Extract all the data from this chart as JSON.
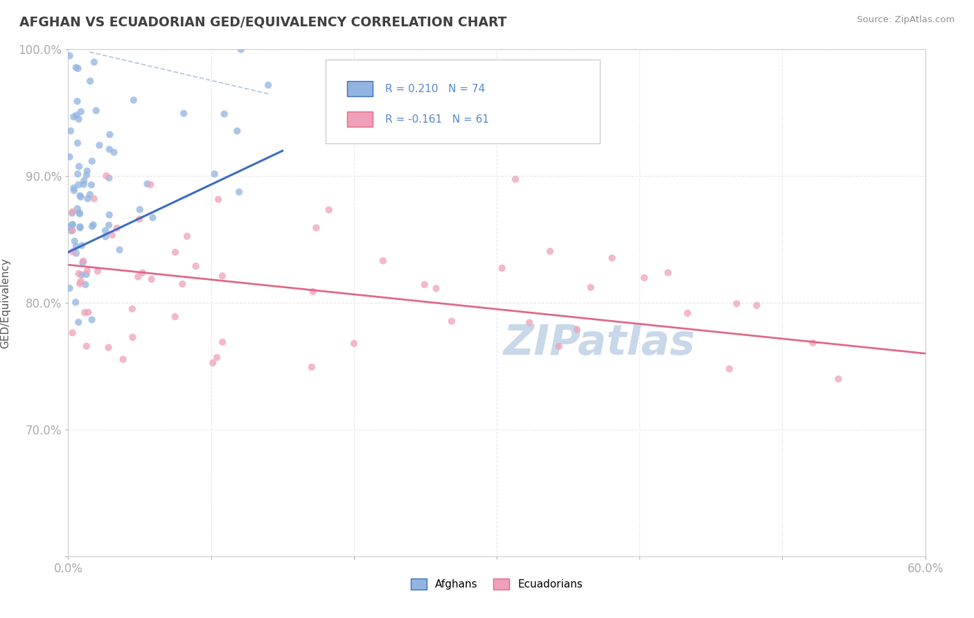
{
  "title": "AFGHAN VS ECUADORIAN GED/EQUIVALENCY CORRELATION CHART",
  "source": "Source: ZipAtlas.com",
  "ylabel_label": "GED/Equivalency",
  "legend_label1": "Afghans",
  "legend_label2": "Ecuadorians",
  "r1": "0.210",
  "n1": "74",
  "r2": "-0.161",
  "n2": "61",
  "xlim": [
    0.0,
    60.0
  ],
  "ylim": [
    60.0,
    100.0
  ],
  "blue_scatter_color": "#92b4e0",
  "pink_scatter_color": "#f0a0b8",
  "blue_line_color": "#3a6bc4",
  "pink_line_color": "#e06888",
  "dash_line_color": "#b0c0d8",
  "title_color": "#404040",
  "source_color": "#909090",
  "axis_tick_color": "#5588cc",
  "watermark_color": "#c8d8ea",
  "grid_color": "#e8e8e8"
}
